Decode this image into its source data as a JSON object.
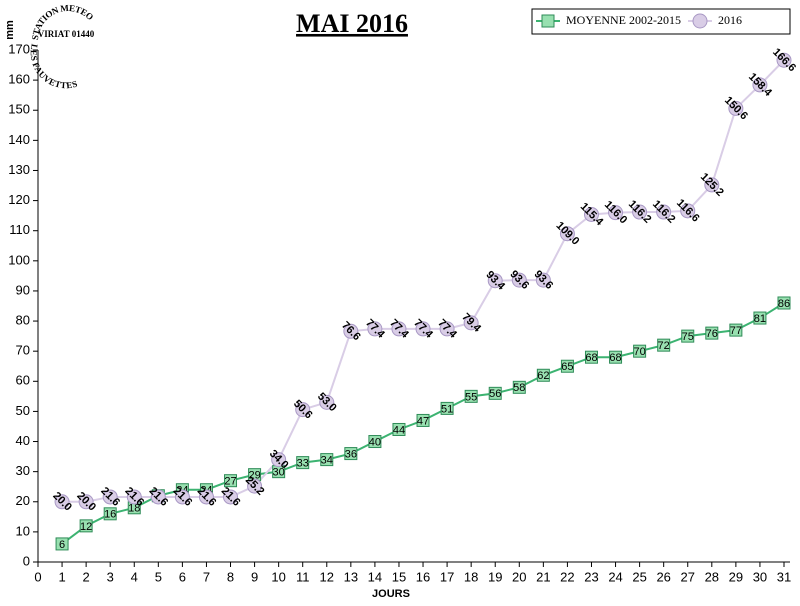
{
  "logo": {
    "top": "STATION METEO",
    "middle": "VIRIAT 01440",
    "bottom": "LES FAUVETTES"
  },
  "chart_data": {
    "type": "line",
    "title": "MAI 2016",
    "y_label": "mm",
    "x_label": "JOURS",
    "x": [
      1,
      2,
      3,
      4,
      5,
      6,
      7,
      8,
      9,
      10,
      11,
      12,
      13,
      14,
      15,
      16,
      17,
      18,
      19,
      20,
      21,
      22,
      23,
      24,
      25,
      26,
      27,
      28,
      29,
      30,
      31
    ],
    "xlim": [
      0,
      31
    ],
    "xticks": [
      0,
      1,
      2,
      3,
      4,
      5,
      6,
      7,
      8,
      9,
      10,
      11,
      12,
      13,
      14,
      15,
      16,
      17,
      18,
      19,
      20,
      21,
      22,
      23,
      24,
      25,
      26,
      27,
      28,
      29,
      30,
      31
    ],
    "ylim": [
      0,
      170
    ],
    "yticks": [
      0,
      10,
      20,
      30,
      40,
      50,
      60,
      70,
      80,
      90,
      100,
      110,
      120,
      130,
      140,
      150,
      160,
      170
    ],
    "legend": "top-right",
    "series": [
      {
        "name": "MOYENNE 2002-2015",
        "color": "#3cb371",
        "marker": "square",
        "values": [
          6,
          12,
          16,
          18,
          22,
          24,
          24,
          27,
          29,
          30,
          33,
          34,
          36,
          40,
          44,
          47,
          51,
          55,
          56,
          58,
          62,
          65,
          68,
          68,
          70,
          72,
          75,
          76,
          77,
          81,
          86
        ]
      },
      {
        "name": "2016",
        "color": "#d9cde6",
        "marker": "circle",
        "values": [
          20.0,
          20.0,
          21.6,
          21.6,
          21.6,
          21.6,
          21.6,
          21.6,
          25.2,
          34.0,
          50.6,
          53.0,
          76.6,
          77.4,
          77.4,
          77.4,
          77.4,
          79.4,
          93.4,
          93.6,
          93.6,
          109.0,
          115.4,
          116.0,
          116.2,
          116.2,
          116.6,
          125.2,
          150.6,
          158.4,
          166.6
        ],
        "value_labels": [
          "20.0",
          "20.0",
          "21.6",
          "21.6",
          "21.6",
          "21.6",
          "21.6",
          "21.6",
          "25.2",
          "34.0",
          "50.6",
          "53.0",
          "76.6",
          "77.4",
          "77.4",
          "77.4",
          "77.4",
          "79.4",
          "93.4",
          "93.6",
          "93.6",
          "109.0",
          "115.4",
          "116.0",
          "116.2",
          "116.2",
          "116.6",
          "125.2",
          "150.6",
          "158.4",
          "166.6"
        ]
      }
    ]
  }
}
